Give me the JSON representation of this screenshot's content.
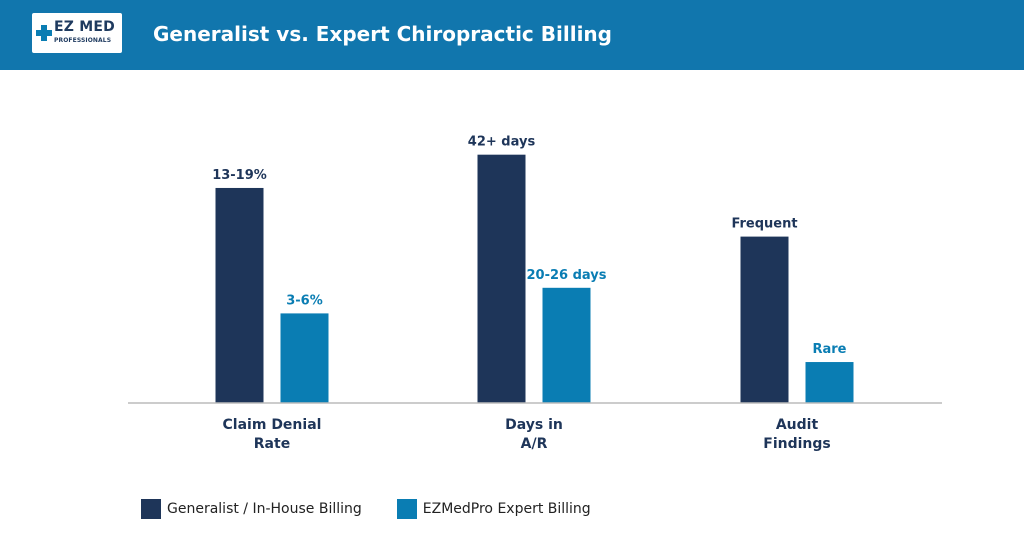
{
  "header": {
    "logo_main": "EZ MED",
    "logo_sub": "PROFESSIONALS",
    "title": "Generalist vs. Expert Chiropractic Billing"
  },
  "colors": {
    "header_bg": "#1176ad",
    "generalist": "#1e3559",
    "expert": "#0a7db3",
    "logo_cross": "#0a7db3"
  },
  "chart_data": {
    "type": "bar",
    "categories": [
      [
        "Claim Denial",
        "Rate"
      ],
      [
        "Days in",
        "A/R"
      ],
      [
        "Audit",
        "Findings"
      ]
    ],
    "series": [
      {
        "name": "Generalist / In-House Billing",
        "values": [
          0.84,
          0.97,
          0.65
        ],
        "labels": [
          "13-19%",
          "42+ days",
          "Frequent"
        ]
      },
      {
        "name": "EZMedPro Expert Billing",
        "values": [
          0.35,
          0.45,
          0.16
        ],
        "labels": [
          "3-6%",
          "20-26 days",
          "Rare"
        ]
      }
    ],
    "value_note": "relative bar heights (no numeric axis shown)",
    "grid": false,
    "legend_position": "bottom-left"
  }
}
